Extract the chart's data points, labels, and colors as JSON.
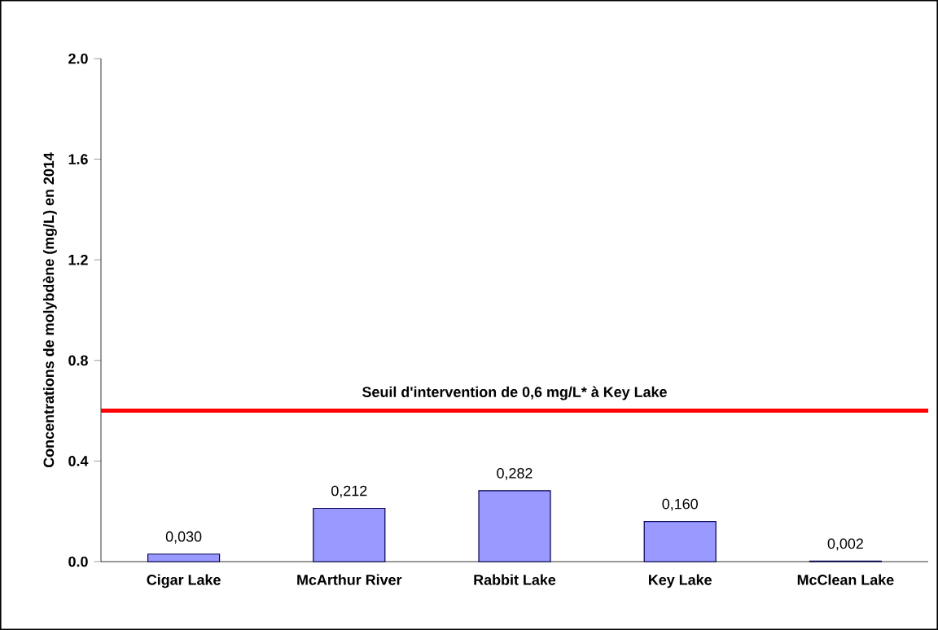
{
  "chart_data": {
    "type": "bar",
    "ylabel": "Concentrations de molybdène (mg/L) en 2014",
    "categories": [
      "Cigar Lake",
      "McArthur River",
      "Rabbit Lake",
      "Key Lake",
      "McClean Lake"
    ],
    "values": [
      0.03,
      0.212,
      0.282,
      0.16,
      0.002
    ],
    "value_labels": [
      "0,030",
      "0,212",
      "0,282",
      "0,160",
      "0,002"
    ],
    "color": "#9999ff",
    "ylim": [
      0,
      2.0
    ],
    "yticks": [
      {
        "value": 0,
        "label": "0.0"
      },
      {
        "value": 0.4,
        "label": "0.4"
      },
      {
        "value": 0.8,
        "label": "0.8"
      },
      {
        "value": 1.2,
        "label": "1.2"
      },
      {
        "value": 1.6,
        "label": "1.6"
      },
      {
        "value": 2.0,
        "label": "2.0"
      }
    ],
    "ref_lines": [
      {
        "axis": "y",
        "value": 0.6,
        "label": "Seuil d'intervention de 0,6 mg/L* à Key Lake",
        "color": "#ff0000"
      }
    ],
    "grid": false
  }
}
